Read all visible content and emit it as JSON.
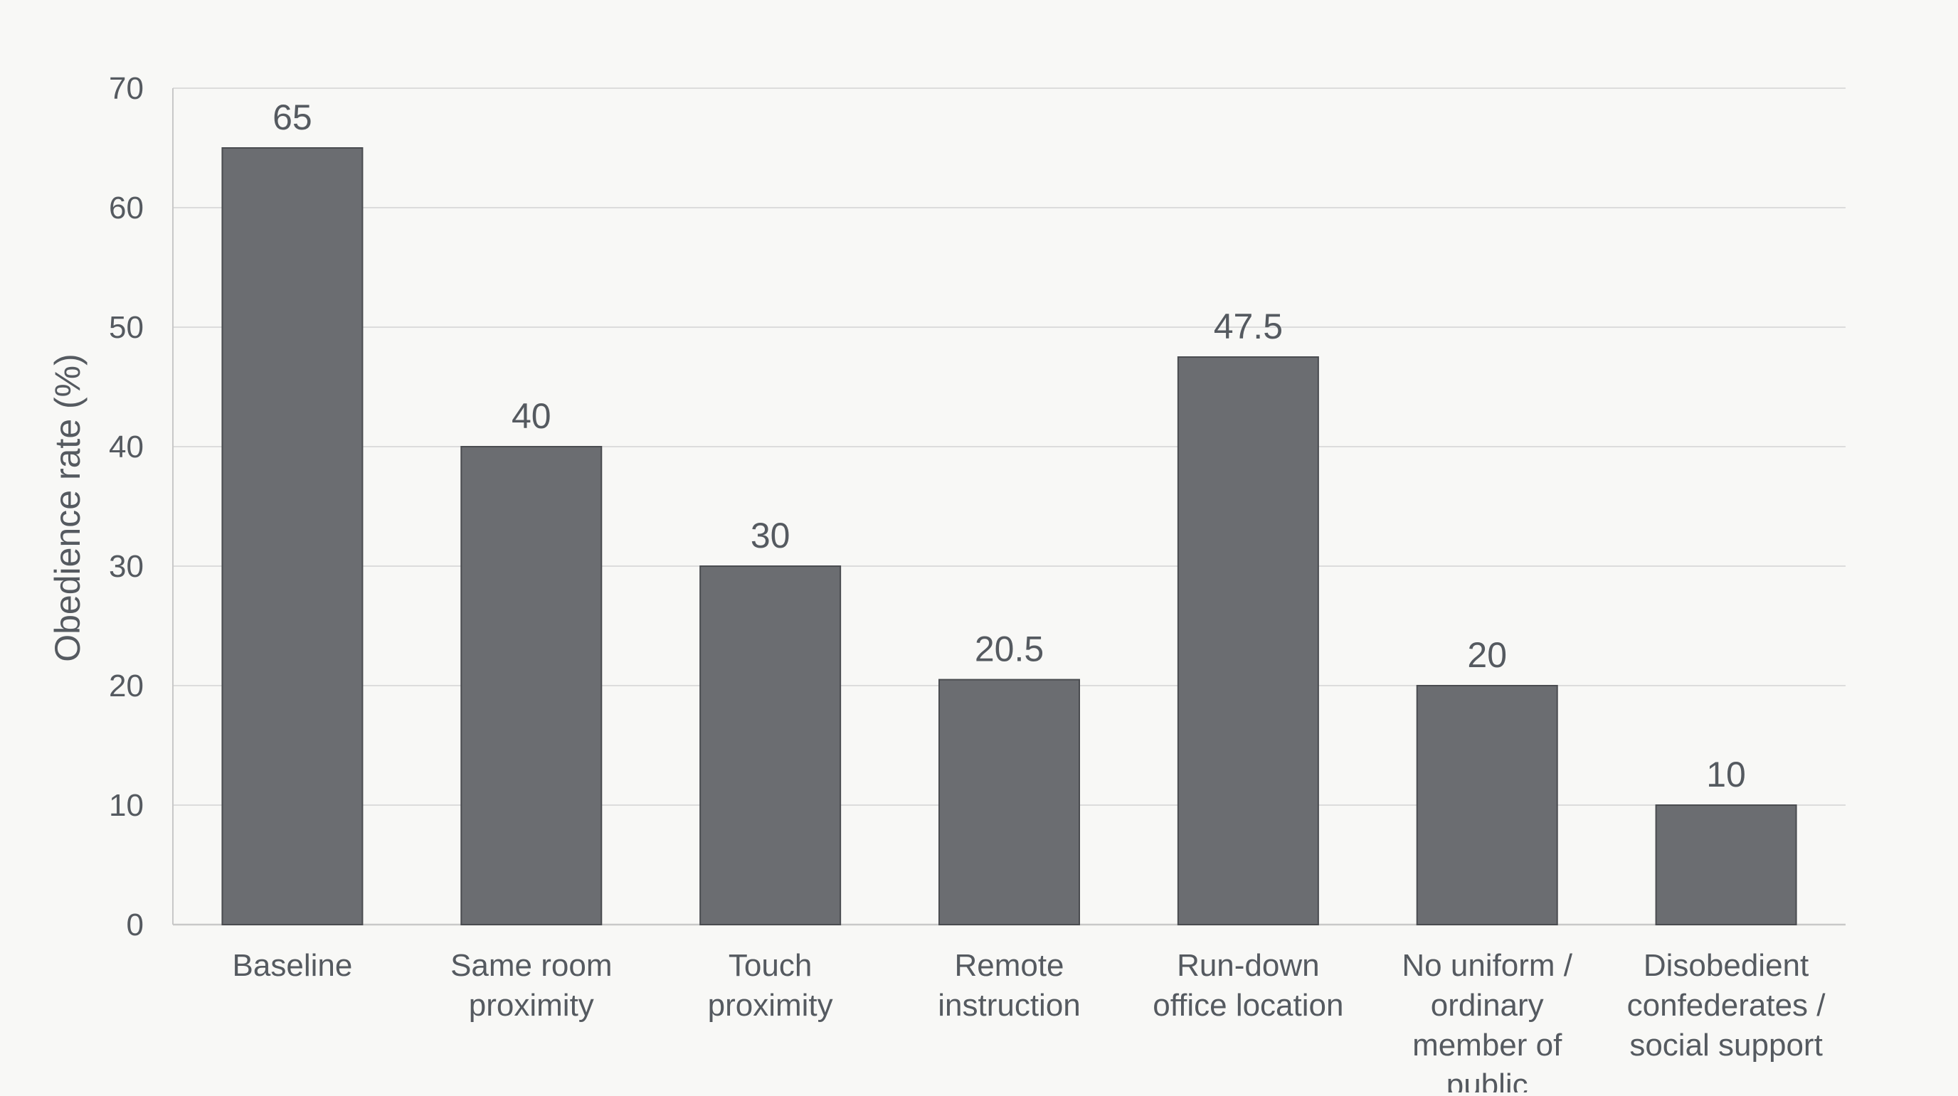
{
  "chart_data": {
    "type": "bar",
    "title": "",
    "xlabel": "",
    "ylabel": "Obedience rate (%)",
    "ylim": [
      0,
      70
    ],
    "yticks": [
      0,
      10,
      20,
      30,
      40,
      50,
      60,
      70
    ],
    "grid": true,
    "categories": [
      "Baseline",
      "Same room proximity",
      "Touch proximity",
      "Remote instruction",
      "Run-down office location",
      "No uniform / ordinary member of public",
      "Disobedient confederates / social support"
    ],
    "category_lines": [
      [
        "Baseline"
      ],
      [
        "Same room",
        "proximity"
      ],
      [
        "Touch",
        "proximity"
      ],
      [
        "Remote",
        "instruction"
      ],
      [
        "Run-down",
        "office location"
      ],
      [
        "No uniform /",
        "ordinary",
        "member of",
        "public"
      ],
      [
        "Disobedient",
        "confederates /",
        "social support"
      ]
    ],
    "values": [
      65,
      40,
      30,
      20.5,
      47.5,
      20,
      10
    ],
    "value_labels": [
      "65",
      "40",
      "30",
      "20.5",
      "47.5",
      "20",
      "10"
    ],
    "colors": {
      "bar": "#6b6d71",
      "bar_edge": "#4a4c50",
      "grid": "#dcdcdc",
      "axis": "#c8c8c8",
      "text": "#555a60"
    }
  }
}
